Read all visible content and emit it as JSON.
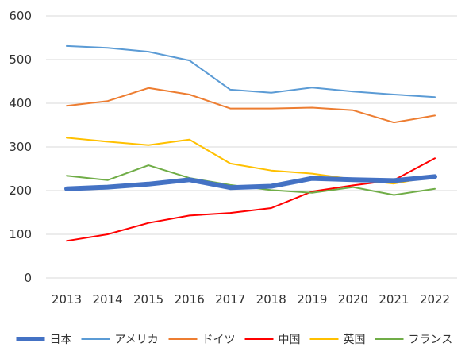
{
  "chart_data": {
    "type": "line",
    "title": "",
    "xlabel": "",
    "ylabel": "",
    "x": [
      "2013",
      "2014",
      "2015",
      "2016",
      "2017",
      "2018",
      "2019",
      "2020",
      "2021",
      "2022"
    ],
    "ylim": [
      0,
      600
    ],
    "yticks": [
      0,
      100,
      200,
      300,
      400,
      500,
      600
    ],
    "grid": true,
    "legend_position": "bottom",
    "series": [
      {
        "name": "日本",
        "color": "#4472c4",
        "emphasis": true,
        "values": [
          204,
          208,
          215,
          225,
          207,
          210,
          228,
          225,
          223,
          232
        ]
      },
      {
        "name": "アメリカ",
        "color": "#5b9bd5",
        "values": [
          531,
          527,
          518,
          498,
          431,
          424,
          436,
          427,
          420,
          414
        ]
      },
      {
        "name": "ドイツ",
        "color": "#ed7d31",
        "values": [
          394,
          405,
          435,
          420,
          388,
          388,
          390,
          384,
          356,
          372
        ]
      },
      {
        "name": "中国",
        "color": "#ff0000",
        "values": [
          85,
          100,
          126,
          143,
          149,
          160,
          198,
          212,
          224,
          274
        ]
      },
      {
        "name": "英国",
        "color": "#ffc000",
        "values": [
          321,
          312,
          304,
          317,
          262,
          246,
          239,
          226,
          216,
          233
        ]
      },
      {
        "name": "フランス",
        "color": "#70ad47",
        "values": [
          234,
          224,
          258,
          229,
          213,
          201,
          195,
          208,
          190,
          204
        ]
      }
    ]
  }
}
